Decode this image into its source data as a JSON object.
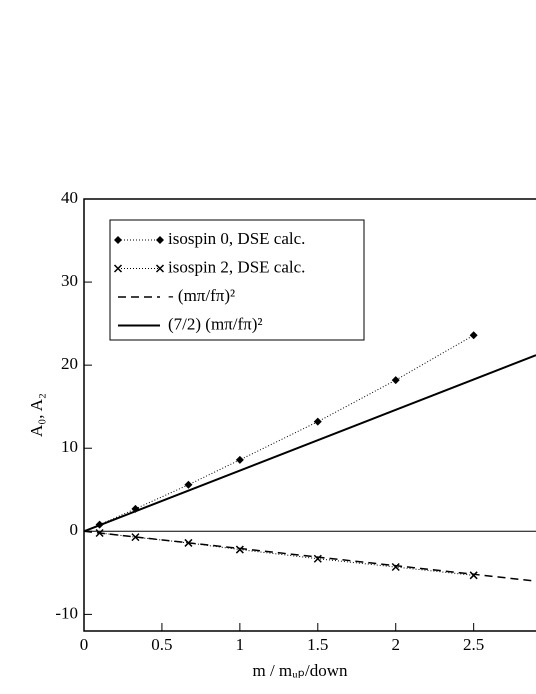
{
  "chart_data": {
    "type": "line",
    "xlabel": "m / mᵤₚ/down",
    "ylabel": "A₀,  A₂",
    "xlim": [
      0,
      2.9
    ],
    "ylim": [
      -12,
      40
    ],
    "xticks": [
      0,
      0.5,
      1,
      1.5,
      2,
      2.5
    ],
    "yticks": [
      -10,
      0,
      10,
      20,
      30,
      40
    ],
    "legend": "upper left",
    "series": [
      {
        "name": "isospin 0, DSE calc.",
        "color": "#000000",
        "style": "dotted",
        "marker": "diamond",
        "x": [
          0.1,
          0.33,
          0.67,
          1,
          1.5,
          2,
          2.5
        ],
        "values": [
          0.8,
          2.7,
          5.6,
          8.6,
          13.2,
          18.2,
          23.6
        ]
      },
      {
        "name": "isospin 2, DSE calc.",
        "color": "#000000",
        "style": "dotted",
        "marker": "cross",
        "x": [
          0.1,
          0.33,
          0.67,
          1,
          1.5,
          2,
          2.5
        ],
        "values": [
          -0.2,
          -0.7,
          -1.4,
          -2.2,
          -3.3,
          -4.3,
          -5.3
        ]
      },
      {
        "name": "- (mπ/fπ)²",
        "color": "#000000",
        "style": "dashed",
        "marker": "none",
        "x": [
          0,
          2.9
        ],
        "values": [
          0,
          -6.0
        ]
      },
      {
        "name": "(7/2) (mπ/fπ)²",
        "color": "#000000",
        "style": "solid",
        "marker": "none",
        "x": [
          0,
          2.9
        ],
        "values": [
          0,
          21.2
        ]
      }
    ]
  }
}
